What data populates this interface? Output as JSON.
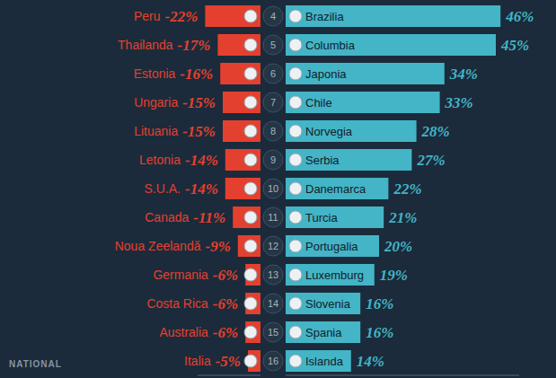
{
  "chart_data": [
    {
      "type": "bar",
      "orientation": "horizontal",
      "categories": [
        "Peru",
        "Thailanda",
        "Estonia",
        "Ungaria",
        "Lituania",
        "Letonia",
        "S.U.A.",
        "Canada",
        "Noua Zeelandă",
        "Germania",
        "Costa Rica",
        "Australia",
        "Italia"
      ],
      "values": [
        -22,
        -17,
        -16,
        -15,
        -15,
        -14,
        -14,
        -11,
        -9,
        -6,
        -6,
        -6,
        -5
      ],
      "value_labels": [
        "-22%",
        "-17%",
        "-16%",
        "-15%",
        "-15%",
        "-14%",
        "-14%",
        "-11%",
        "-9%",
        "-6%",
        "-6%",
        "-6%",
        "-5%"
      ],
      "color": "#e4402f",
      "xlim": [
        -25,
        0
      ],
      "tick_labels": false,
      "data_labels": true
    },
    {
      "type": "bar",
      "orientation": "horizontal",
      "ranks": [
        4,
        5,
        6,
        7,
        8,
        9,
        10,
        11,
        12,
        13,
        14,
        15,
        16
      ],
      "categories": [
        "Brazilia",
        "Columbia",
        "Japonia",
        "Chile",
        "Norvegia",
        "Serbia",
        "Danemarca",
        "Turcia",
        "Portugalia",
        "Luxemburg",
        "Slovenia",
        "Spania",
        "Islanda"
      ],
      "values": [
        46,
        45,
        34,
        33,
        28,
        27,
        22,
        21,
        20,
        19,
        16,
        16,
        14
      ],
      "value_labels": [
        "46%",
        "45%",
        "34%",
        "33%",
        "28%",
        "27%",
        "22%",
        "21%",
        "20%",
        "19%",
        "16%",
        "16%",
        "14%"
      ],
      "color": "#43b5c6",
      "xlim": [
        0,
        50
      ],
      "tick_labels": false,
      "data_labels": true
    }
  ],
  "watermark": "NATIONAL"
}
